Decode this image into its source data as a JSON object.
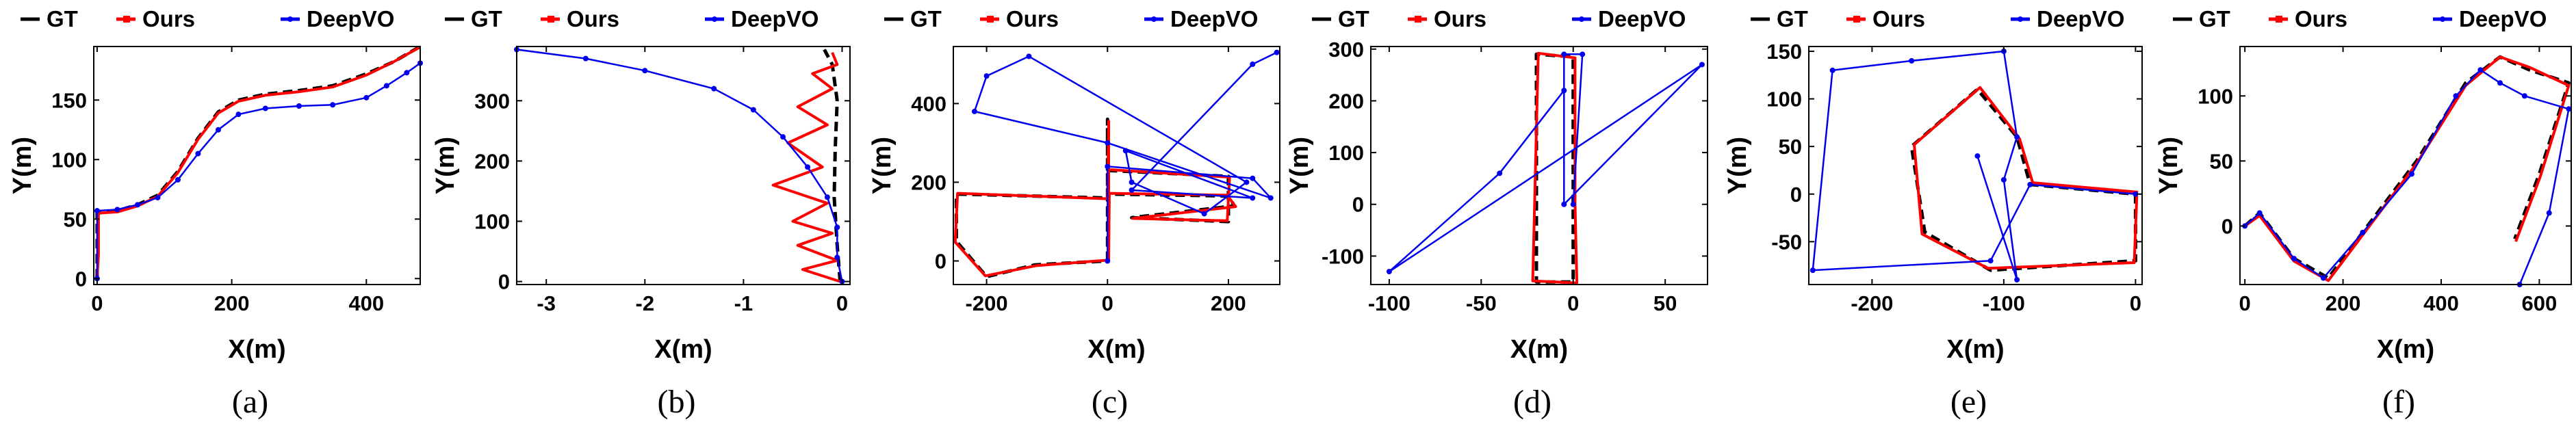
{
  "colors": {
    "gt": "#000000",
    "ours": "#ff0000",
    "deepvo": "#0000ee",
    "axis": "#000000"
  },
  "legend": [
    "GT",
    "Ours",
    "DeepVO"
  ],
  "chart_data": [
    {
      "type": "line",
      "caption": "(a)",
      "xlabel": "X(m)",
      "ylabel": "Y(m)",
      "xlim": [
        -5,
        480
      ],
      "ylim": [
        -5,
        195
      ],
      "xticks": [
        0,
        200,
        400
      ],
      "yticks": [
        0,
        50,
        100,
        150
      ],
      "series": [
        {
          "name": "GT",
          "points": [
            [
              0,
              0
            ],
            [
              0,
              10
            ],
            [
              0,
              55
            ],
            [
              30,
              57
            ],
            [
              60,
              62
            ],
            [
              90,
              70
            ],
            [
              120,
              90
            ],
            [
              150,
              118
            ],
            [
              180,
              140
            ],
            [
              210,
              150
            ],
            [
              250,
              155
            ],
            [
              300,
              158
            ],
            [
              350,
              162
            ],
            [
              400,
              172
            ],
            [
              440,
              182
            ],
            [
              480,
              195
            ]
          ]
        },
        {
          "name": "Ours",
          "points": [
            [
              0,
              0
            ],
            [
              2,
              20
            ],
            [
              2,
              55
            ],
            [
              30,
              56
            ],
            [
              60,
              61
            ],
            [
              90,
              69
            ],
            [
              120,
              89
            ],
            [
              150,
              117
            ],
            [
              180,
              139
            ],
            [
              210,
              149
            ],
            [
              250,
              154
            ],
            [
              300,
              157
            ],
            [
              350,
              161
            ],
            [
              400,
              171
            ],
            [
              440,
              182
            ],
            [
              478,
              194
            ]
          ]
        },
        {
          "name": "DeepVO",
          "points": [
            [
              0,
              0
            ],
            [
              0,
              57
            ],
            [
              30,
              58
            ],
            [
              60,
              62
            ],
            [
              90,
              68
            ],
            [
              120,
              83
            ],
            [
              150,
              105
            ],
            [
              180,
              125
            ],
            [
              210,
              138
            ],
            [
              250,
              143
            ],
            [
              300,
              145
            ],
            [
              350,
              146
            ],
            [
              400,
              152
            ],
            [
              430,
              162
            ],
            [
              460,
              173
            ],
            [
              480,
              181
            ]
          ]
        }
      ]
    },
    {
      "type": "line",
      "caption": "(b)",
      "xlabel": "X(m)",
      "ylabel": "Y(m)",
      "xlim": [
        -3.3,
        0.08
      ],
      "ylim": [
        -5,
        390
      ],
      "xticks": [
        -3,
        -2,
        -1,
        0
      ],
      "yticks": [
        0,
        100,
        200,
        300
      ],
      "series": [
        {
          "name": "GT",
          "points": [
            [
              -0.02,
              0
            ],
            [
              -0.05,
              60
            ],
            [
              -0.08,
              140
            ],
            [
              -0.07,
              220
            ],
            [
              -0.05,
              300
            ],
            [
              -0.1,
              360
            ],
            [
              -0.18,
              385
            ]
          ]
        },
        {
          "name": "Ours",
          "points": [
            [
              -0.02,
              0
            ],
            [
              -0.4,
              20
            ],
            [
              -0.05,
              35
            ],
            [
              -0.45,
              60
            ],
            [
              -0.1,
              80
            ],
            [
              -0.5,
              100
            ],
            [
              -0.15,
              130
            ],
            [
              -0.7,
              160
            ],
            [
              -0.2,
              190
            ],
            [
              -0.55,
              230
            ],
            [
              -0.15,
              260
            ],
            [
              -0.45,
              290
            ],
            [
              -0.1,
              320
            ],
            [
              -0.3,
              345
            ],
            [
              -0.05,
              360
            ],
            [
              -0.1,
              380
            ]
          ]
        },
        {
          "name": "DeepVO",
          "points": [
            [
              0,
              0
            ],
            [
              -0.05,
              40
            ],
            [
              -0.05,
              90
            ],
            [
              -0.15,
              140
            ],
            [
              -0.35,
              190
            ],
            [
              -0.6,
              240
            ],
            [
              -0.9,
              285
            ],
            [
              -1.3,
              320
            ],
            [
              -2.0,
              350
            ],
            [
              -2.6,
              370
            ],
            [
              -3.3,
              385
            ]
          ]
        }
      ]
    },
    {
      "type": "line",
      "caption": "(c)",
      "xlabel": "X(m)",
      "ylabel": "Y(m)",
      "xlim": [
        -255,
        285
      ],
      "ylim": [
        -60,
        545
      ],
      "xticks": [
        -200,
        0,
        200
      ],
      "yticks": [
        0,
        200,
        400
      ],
      "series": [
        {
          "name": "GT",
          "points": [
            [
              0,
              0
            ],
            [
              0,
              360
            ],
            [
              0,
              160
            ],
            [
              -250,
              170
            ],
            [
              -250,
              50
            ],
            [
              -200,
              -40
            ],
            [
              -120,
              -10
            ],
            [
              0,
              0
            ],
            [
              0,
              170
            ],
            [
              200,
              165
            ],
            [
              210,
              140
            ],
            [
              40,
              110
            ],
            [
              200,
              100
            ],
            [
              200,
              215
            ],
            [
              0,
              230
            ]
          ]
        },
        {
          "name": "Ours",
          "points": [
            [
              2,
              0
            ],
            [
              2,
              355
            ],
            [
              0,
              158
            ],
            [
              -248,
              172
            ],
            [
              -252,
              48
            ],
            [
              -202,
              -38
            ],
            [
              -118,
              -12
            ],
            [
              2,
              2
            ],
            [
              3,
              172
            ],
            [
              198,
              167
            ],
            [
              212,
              138
            ],
            [
              42,
              108
            ],
            [
              198,
              102
            ],
            [
              202,
              213
            ],
            [
              3,
              232
            ]
          ]
        },
        {
          "name": "DeepVO",
          "points": [
            [
              0,
              0
            ],
            [
              0,
              240
            ],
            [
              240,
              210
            ],
            [
              270,
              160
            ],
            [
              0,
              300
            ],
            [
              -220,
              380
            ],
            [
              -200,
              470
            ],
            [
              -130,
              520
            ],
            [
              230,
              200
            ],
            [
              160,
              120
            ],
            [
              40,
              200
            ],
            [
              30,
              280
            ],
            [
              240,
              160
            ],
            [
              40,
              180
            ],
            [
              240,
              500
            ],
            [
              280,
              530
            ]
          ]
        }
      ]
    },
    {
      "type": "line",
      "caption": "(d)",
      "xlabel": "X(m)",
      "ylabel": "Y(m)",
      "xlim": [
        -110,
        73
      ],
      "ylim": [
        -155,
        305
      ],
      "xticks": [
        -100,
        -50,
        0,
        50
      ],
      "yticks": [
        -100,
        0,
        100,
        200,
        300
      ],
      "series": [
        {
          "name": "GT",
          "points": [
            [
              0,
              0
            ],
            [
              0,
              285
            ],
            [
              -20,
              290
            ],
            [
              -20,
              -150
            ],
            [
              0,
              -150
            ],
            [
              0,
              0
            ]
          ]
        },
        {
          "name": "Ours",
          "points": [
            [
              1,
              0
            ],
            [
              1,
              283
            ],
            [
              -19,
              292
            ],
            [
              -22,
              -148
            ],
            [
              2,
              -152
            ],
            [
              1,
              2
            ]
          ]
        },
        {
          "name": "DeepVO",
          "points": [
            [
              0,
              0
            ],
            [
              5,
              290
            ],
            [
              -5,
              290
            ],
            [
              -5,
              0
            ],
            [
              70,
              270
            ],
            [
              -100,
              -130
            ],
            [
              -40,
              60
            ],
            [
              -5,
              220
            ]
          ]
        }
      ]
    },
    {
      "type": "line",
      "caption": "(e)",
      "xlabel": "X(m)",
      "ylabel": "Y(m)",
      "xlim": [
        -248,
        5
      ],
      "ylim": [
        -95,
        155
      ],
      "xticks": [
        -200,
        -100,
        0
      ],
      "yticks": [
        -50,
        0,
        50,
        100,
        150
      ],
      "series": [
        {
          "name": "GT",
          "points": [
            [
              0,
              0
            ],
            [
              0,
              -70
            ],
            [
              -110,
              -80
            ],
            [
              -160,
              -40
            ],
            [
              -170,
              50
            ],
            [
              -120,
              110
            ],
            [
              -90,
              60
            ],
            [
              -80,
              10
            ],
            [
              0,
              0
            ]
          ]
        },
        {
          "name": "Ours",
          "points": [
            [
              1,
              -2
            ],
            [
              -1,
              -72
            ],
            [
              -112,
              -78
            ],
            [
              -162,
              -42
            ],
            [
              -168,
              52
            ],
            [
              -118,
              112
            ],
            [
              -88,
              58
            ],
            [
              -78,
              12
            ],
            [
              2,
              2
            ]
          ]
        },
        {
          "name": "DeepVO",
          "points": [
            [
              0,
              0
            ],
            [
              -80,
              10
            ],
            [
              -110,
              -70
            ],
            [
              -245,
              -80
            ],
            [
              -230,
              130
            ],
            [
              -170,
              140
            ],
            [
              -100,
              150
            ],
            [
              -90,
              60
            ],
            [
              -100,
              15
            ],
            [
              -90,
              -90
            ],
            [
              -120,
              40
            ]
          ]
        }
      ]
    },
    {
      "type": "line",
      "caption": "(f)",
      "xlabel": "X(m)",
      "ylabel": "Y(m)",
      "xlim": [
        -10,
        665
      ],
      "ylim": [
        -45,
        138
      ],
      "xticks": [
        0,
        200,
        400,
        600
      ],
      "yticks": [
        0,
        50,
        100
      ],
      "series": [
        {
          "name": "GT",
          "points": [
            [
              0,
              0
            ],
            [
              30,
              10
            ],
            [
              100,
              -25
            ],
            [
              170,
              -40
            ],
            [
              250,
              0
            ],
            [
              350,
              50
            ],
            [
              450,
              110
            ],
            [
              520,
              130
            ],
            [
              580,
              120
            ],
            [
              660,
              110
            ],
            [
              600,
              40
            ],
            [
              550,
              -10
            ]
          ]
        },
        {
          "name": "Ours",
          "points": [
            [
              0,
              0
            ],
            [
              30,
              8
            ],
            [
              100,
              -27
            ],
            [
              170,
              -42
            ],
            [
              250,
              -2
            ],
            [
              350,
              48
            ],
            [
              450,
              108
            ],
            [
              520,
              130
            ],
            [
              580,
              122
            ],
            [
              660,
              108
            ],
            [
              602,
              38
            ],
            [
              552,
              -12
            ]
          ]
        },
        {
          "name": "DeepVO",
          "points": [
            [
              0,
              0
            ],
            [
              30,
              10
            ],
            [
              100,
              -25
            ],
            [
              160,
              -40
            ],
            [
              240,
              -5
            ],
            [
              340,
              40
            ],
            [
              430,
              100
            ],
            [
              480,
              120
            ],
            [
              520,
              110
            ],
            [
              570,
              100
            ],
            [
              660,
              90
            ],
            [
              620,
              10
            ],
            [
              560,
              -45
            ]
          ]
        }
      ]
    }
  ]
}
